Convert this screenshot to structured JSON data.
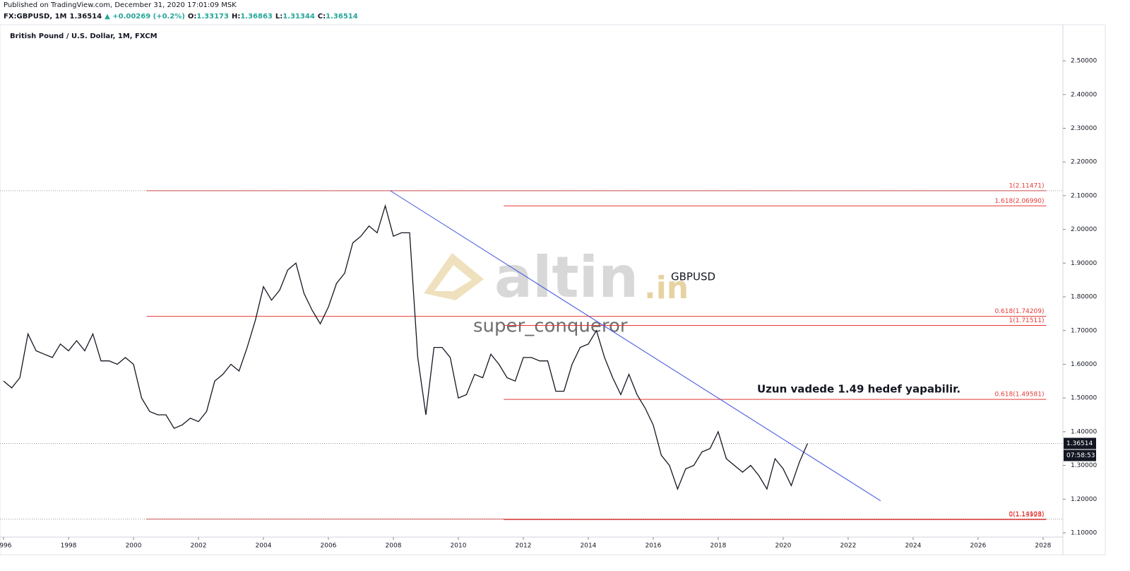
{
  "header": {
    "published": "Published on TradingView.com, December 31, 2020 17:01:09 MSK",
    "symbol": "FX:GBPUSD, 1M",
    "price": "1.36514",
    "change": "▲ +0.00269 (+0.2%)",
    "ohlc": [
      {
        "label": "O:",
        "value": "1.33173"
      },
      {
        "label": "H:",
        "value": "1.36863"
      },
      {
        "label": "L:",
        "value": "1.31344"
      },
      {
        "label": "C:",
        "value": "1.36514"
      }
    ]
  },
  "chart_data": {
    "type": "line",
    "title": "British Pound / U.S. Dollar, 1M, FXCM",
    "color": "#131722",
    "x": [
      1996,
      1996.25,
      1996.5,
      1996.75,
      1997,
      1997.25,
      1997.5,
      1997.75,
      1998,
      1998.25,
      1998.5,
      1998.75,
      1999,
      1999.25,
      1999.5,
      1999.75,
      2000,
      2000.25,
      2000.5,
      2000.75,
      2001,
      2001.25,
      2001.5,
      2001.75,
      2002,
      2002.25,
      2002.5,
      2002.75,
      2003,
      2003.25,
      2003.5,
      2003.75,
      2004,
      2004.25,
      2004.5,
      2004.75,
      2005,
      2005.25,
      2005.5,
      2005.75,
      2006,
      2006.25,
      2006.5,
      2006.75,
      2007,
      2007.25,
      2007.5,
      2007.75,
      2008,
      2008.25,
      2008.5,
      2008.75,
      2009,
      2009.25,
      2009.5,
      2009.75,
      2010,
      2010.25,
      2010.5,
      2010.75,
      2011,
      2011.25,
      2011.5,
      2011.75,
      2012,
      2012.25,
      2012.5,
      2012.75,
      2013,
      2013.25,
      2013.5,
      2013.75,
      2014,
      2014.25,
      2014.5,
      2014.75,
      2015,
      2015.25,
      2015.5,
      2015.75,
      2016,
      2016.25,
      2016.5,
      2016.75,
      2017,
      2017.25,
      2017.5,
      2017.75,
      2018,
      2018.25,
      2018.5,
      2018.75,
      2019,
      2019.25,
      2019.5,
      2019.75,
      2020,
      2020.25,
      2020.5,
      2020.75
    ],
    "values": [
      1.55,
      1.53,
      1.56,
      1.69,
      1.64,
      1.63,
      1.62,
      1.66,
      1.64,
      1.67,
      1.64,
      1.69,
      1.61,
      1.61,
      1.6,
      1.62,
      1.6,
      1.5,
      1.46,
      1.45,
      1.45,
      1.41,
      1.42,
      1.44,
      1.43,
      1.46,
      1.55,
      1.57,
      1.6,
      1.58,
      1.65,
      1.73,
      1.83,
      1.79,
      1.82,
      1.88,
      1.9,
      1.81,
      1.76,
      1.72,
      1.77,
      1.84,
      1.87,
      1.96,
      1.98,
      2.01,
      1.99,
      2.07,
      1.98,
      1.99,
      1.99,
      1.62,
      1.45,
      1.65,
      1.65,
      1.62,
      1.5,
      1.51,
      1.57,
      1.56,
      1.63,
      1.6,
      1.56,
      1.55,
      1.62,
      1.62,
      1.61,
      1.61,
      1.52,
      1.52,
      1.6,
      1.65,
      1.66,
      1.7,
      1.62,
      1.56,
      1.51,
      1.57,
      1.51,
      1.47,
      1.42,
      1.33,
      1.3,
      1.23,
      1.29,
      1.3,
      1.34,
      1.35,
      1.4,
      1.32,
      1.3,
      1.28,
      1.3,
      1.27,
      1.23,
      1.32,
      1.29,
      1.24,
      1.31,
      1.365
    ],
    "xlim": [
      1995.89,
      2028.72
    ],
    "xticks": [
      1996,
      1998,
      2000,
      2002,
      2004,
      2006,
      2008,
      2010,
      2012,
      2014,
      2016,
      2018,
      2020,
      2022,
      2024,
      2026,
      2028
    ],
    "ylim": [
      1.077,
      2.607
    ],
    "yticks": [
      {
        "value": 1.1,
        "label": "1.10000"
      },
      {
        "value": 1.2,
        "label": "1.20000"
      },
      {
        "value": 1.3,
        "label": "1.30000"
      },
      {
        "value": 1.4,
        "label": "1.40000"
      },
      {
        "value": 1.5,
        "label": "1.50000"
      },
      {
        "value": 1.6,
        "label": "1.60000"
      },
      {
        "value": 1.7,
        "label": "1.70000"
      },
      {
        "value": 1.8,
        "label": "1.80000"
      },
      {
        "value": 1.9,
        "label": "1.90000"
      },
      {
        "value": 2.0,
        "label": "2.00000"
      },
      {
        "value": 2.1,
        "label": "2.10000"
      },
      {
        "value": 2.2,
        "label": "2.20000"
      },
      {
        "value": 2.3,
        "label": "2.30000"
      },
      {
        "value": 2.4,
        "label": "2.40000"
      },
      {
        "value": 2.5,
        "label": "2.50000"
      }
    ],
    "levels": [
      {
        "value": 2.11471,
        "label": "1(2.11471)",
        "start": 2000.4,
        "end": 2028.1
      },
      {
        "value": 2.0699,
        "label": "1.618(2.06990)",
        "start": 2011.4,
        "end": 2028.1
      },
      {
        "value": 1.74209,
        "label": "0.618(1.74209)",
        "start": 2000.4,
        "end": 2028.1
      },
      {
        "value": 1.71511,
        "label": "1(1.71511)",
        "start": 2011.4,
        "end": 2028.1
      },
      {
        "value": 1.49581,
        "label": "0.618(1.49581)",
        "start": 2011.4,
        "end": 2028.1
      },
      {
        "value": 1.14103,
        "label": "0(1.14103)",
        "start": 2000.4,
        "end": 2028.1
      },
      {
        "value": 1.13928,
        "label": "0(1.13928)",
        "start": 2011.4,
        "end": 2028.1
      }
    ],
    "trendline": {
      "x": [
        2007.9,
        2023
      ],
      "y": [
        2.115,
        1.195
      ]
    },
    "last_price": 1.36514,
    "countdown": "07:58:53",
    "annotations": [
      "GBPUSD",
      "super_conqueror",
      "Uzun vadede 1.49 hedef yapabilir."
    ],
    "watermark": {
      "main": "altin",
      "suffix": ".in"
    }
  }
}
